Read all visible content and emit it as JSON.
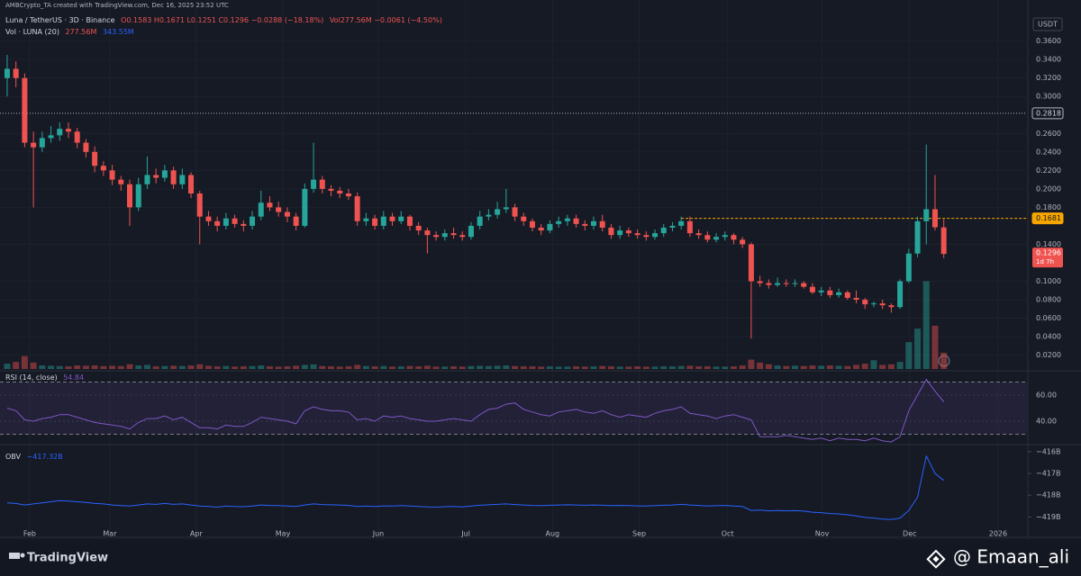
{
  "chart_data": {
    "type": "candlestick",
    "header": {
      "attribution": "AMBCrypto_TA created with TradingView.com, Dec 16, 2025 23:52 UTC",
      "symbol": "Luna / TetherUS · 3D · Binance",
      "ohlc": "O0.1583 H0.1671 L0.1251 C0.1296 −0.0288 (−18.18%)",
      "volume": "Vol277.56M −0.0061 (−4.50%)"
    },
    "volume_legend": {
      "name": "Vol · LUNA (20)",
      "value": "277.56M",
      "ma": "343.55M"
    },
    "currency": "USDT",
    "up_color": "#26a69a",
    "down_color": "#ef5350",
    "grid": true,
    "xlim": [
      -0.82,
      116.5
    ],
    "xticks": [
      {
        "value": 2.57,
        "label": "Feb"
      },
      {
        "value": 11.73,
        "label": "Mar"
      },
      {
        "value": 21.6,
        "label": "Apr"
      },
      {
        "value": 31.5,
        "label": "May"
      },
      {
        "value": 42.4,
        "label": "Jun"
      },
      {
        "value": 52.4,
        "label": "Jul"
      },
      {
        "value": 62.3,
        "label": "Aug"
      },
      {
        "value": 72.2,
        "label": "Sep"
      },
      {
        "value": 82.3,
        "label": "Oct"
      },
      {
        "value": 93.1,
        "label": "Nov"
      },
      {
        "value": 103.1,
        "label": "Dec"
      },
      {
        "value": 113.2,
        "label": "2026"
      }
    ],
    "ylim": [
      0.005,
      0.385
    ],
    "yticks": [
      {
        "value": 0.36,
        "label": "0.3600"
      },
      {
        "value": 0.34,
        "label": "0.3400"
      },
      {
        "value": 0.32,
        "label": "0.3200"
      },
      {
        "value": 0.3,
        "label": "0.3000"
      },
      {
        "value": 0.26,
        "label": "0.2600"
      },
      {
        "value": 0.24,
        "label": "0.2400"
      },
      {
        "value": 0.22,
        "label": "0.2200"
      },
      {
        "value": 0.2,
        "label": "0.2000"
      },
      {
        "value": 0.18,
        "label": "0.1800"
      },
      {
        "value": 0.14,
        "label": "0.1400"
      },
      {
        "value": 0.1,
        "label": "0.1000"
      },
      {
        "value": 0.08,
        "label": "0.0800"
      },
      {
        "value": 0.06,
        "label": "0.0600"
      },
      {
        "value": 0.04,
        "label": "0.0400"
      },
      {
        "value": 0.02,
        "label": "0.0200"
      }
    ],
    "price_lines": [
      {
        "value": 0.2818,
        "color": "#b2b5be"
      },
      {
        "value": 0.1681,
        "color": "#f7a600"
      }
    ],
    "countdown": "1d 7h",
    "candles": [
      [
        0.32,
        0.345,
        0.3,
        0.33
      ],
      [
        0.33,
        0.338,
        0.31,
        0.32
      ],
      [
        0.32,
        0.325,
        0.245,
        0.25
      ],
      [
        0.25,
        0.262,
        0.18,
        0.245
      ],
      [
        0.245,
        0.262,
        0.24,
        0.255
      ],
      [
        0.255,
        0.268,
        0.25,
        0.258
      ],
      [
        0.258,
        0.272,
        0.252,
        0.265
      ],
      [
        0.265,
        0.272,
        0.255,
        0.262
      ],
      [
        0.262,
        0.266,
        0.244,
        0.25
      ],
      [
        0.25,
        0.254,
        0.234,
        0.24
      ],
      [
        0.24,
        0.246,
        0.218,
        0.225
      ],
      [
        0.225,
        0.23,
        0.214,
        0.22
      ],
      [
        0.22,
        0.226,
        0.204,
        0.21
      ],
      [
        0.21,
        0.214,
        0.198,
        0.205
      ],
      [
        0.205,
        0.21,
        0.16,
        0.18
      ],
      [
        0.18,
        0.212,
        0.176,
        0.205
      ],
      [
        0.205,
        0.235,
        0.2,
        0.215
      ],
      [
        0.215,
        0.222,
        0.206,
        0.212
      ],
      [
        0.212,
        0.226,
        0.208,
        0.22
      ],
      [
        0.22,
        0.224,
        0.2,
        0.205
      ],
      [
        0.205,
        0.222,
        0.2,
        0.215
      ],
      [
        0.215,
        0.218,
        0.19,
        0.195
      ],
      [
        0.195,
        0.198,
        0.14,
        0.17
      ],
      [
        0.17,
        0.176,
        0.16,
        0.165
      ],
      [
        0.165,
        0.17,
        0.154,
        0.16
      ],
      [
        0.16,
        0.174,
        0.156,
        0.168
      ],
      [
        0.168,
        0.172,
        0.158,
        0.162
      ],
      [
        0.162,
        0.166,
        0.154,
        0.16
      ],
      [
        0.16,
        0.176,
        0.156,
        0.17
      ],
      [
        0.17,
        0.198,
        0.166,
        0.185
      ],
      [
        0.185,
        0.192,
        0.176,
        0.18
      ],
      [
        0.18,
        0.186,
        0.17,
        0.175
      ],
      [
        0.175,
        0.18,
        0.164,
        0.17
      ],
      [
        0.17,
        0.174,
        0.155,
        0.16
      ],
      [
        0.16,
        0.206,
        0.158,
        0.2
      ],
      [
        0.2,
        0.25,
        0.196,
        0.21
      ],
      [
        0.21,
        0.214,
        0.195,
        0.2
      ],
      [
        0.2,
        0.204,
        0.192,
        0.198
      ],
      [
        0.198,
        0.202,
        0.19,
        0.195
      ],
      [
        0.195,
        0.2,
        0.188,
        0.192
      ],
      [
        0.192,
        0.196,
        0.16,
        0.165
      ],
      [
        0.165,
        0.174,
        0.16,
        0.168
      ],
      [
        0.168,
        0.172,
        0.156,
        0.16
      ],
      [
        0.16,
        0.176,
        0.156,
        0.17
      ],
      [
        0.17,
        0.174,
        0.16,
        0.165
      ],
      [
        0.165,
        0.176,
        0.162,
        0.17
      ],
      [
        0.17,
        0.172,
        0.155,
        0.16
      ],
      [
        0.16,
        0.164,
        0.15,
        0.155
      ],
      [
        0.155,
        0.158,
        0.13,
        0.15
      ],
      [
        0.15,
        0.154,
        0.144,
        0.148
      ],
      [
        0.148,
        0.156,
        0.144,
        0.152
      ],
      [
        0.152,
        0.158,
        0.146,
        0.15
      ],
      [
        0.15,
        0.154,
        0.144,
        0.148
      ],
      [
        0.148,
        0.164,
        0.145,
        0.16
      ],
      [
        0.16,
        0.176,
        0.156,
        0.17
      ],
      [
        0.17,
        0.178,
        0.166,
        0.172
      ],
      [
        0.172,
        0.186,
        0.168,
        0.178
      ],
      [
        0.178,
        0.2,
        0.174,
        0.18
      ],
      [
        0.18,
        0.184,
        0.165,
        0.17
      ],
      [
        0.17,
        0.174,
        0.16,
        0.165
      ],
      [
        0.165,
        0.168,
        0.154,
        0.158
      ],
      [
        0.158,
        0.162,
        0.15,
        0.155
      ],
      [
        0.155,
        0.166,
        0.152,
        0.162
      ],
      [
        0.162,
        0.17,
        0.158,
        0.165
      ],
      [
        0.165,
        0.172,
        0.16,
        0.168
      ],
      [
        0.168,
        0.172,
        0.158,
        0.162
      ],
      [
        0.162,
        0.166,
        0.155,
        0.16
      ],
      [
        0.16,
        0.17,
        0.156,
        0.165
      ],
      [
        0.165,
        0.172,
        0.154,
        0.158
      ],
      [
        0.158,
        0.162,
        0.146,
        0.15
      ],
      [
        0.15,
        0.16,
        0.146,
        0.155
      ],
      [
        0.155,
        0.158,
        0.148,
        0.152
      ],
      [
        0.152,
        0.156,
        0.146,
        0.15
      ],
      [
        0.15,
        0.154,
        0.144,
        0.148
      ],
      [
        0.148,
        0.156,
        0.145,
        0.152
      ],
      [
        0.152,
        0.162,
        0.148,
        0.158
      ],
      [
        0.158,
        0.164,
        0.154,
        0.16
      ],
      [
        0.16,
        0.17,
        0.156,
        0.165
      ],
      [
        0.165,
        0.17,
        0.148,
        0.152
      ],
      [
        0.152,
        0.156,
        0.146,
        0.15
      ],
      [
        0.15,
        0.154,
        0.142,
        0.145
      ],
      [
        0.145,
        0.152,
        0.142,
        0.148
      ],
      [
        0.148,
        0.154,
        0.144,
        0.15
      ],
      [
        0.15,
        0.152,
        0.14,
        0.145
      ],
      [
        0.145,
        0.148,
        0.136,
        0.14
      ],
      [
        0.14,
        0.142,
        0.038,
        0.1
      ],
      [
        0.1,
        0.106,
        0.094,
        0.098
      ],
      [
        0.098,
        0.102,
        0.092,
        0.096
      ],
      [
        0.096,
        0.104,
        0.094,
        0.098
      ],
      [
        0.098,
        0.102,
        0.094,
        0.097
      ],
      [
        0.097,
        0.102,
        0.094,
        0.098
      ],
      [
        0.098,
        0.1,
        0.092,
        0.094
      ],
      [
        0.094,
        0.098,
        0.086,
        0.088
      ],
      [
        0.088,
        0.094,
        0.084,
        0.09
      ],
      [
        0.09,
        0.094,
        0.082,
        0.085
      ],
      [
        0.085,
        0.092,
        0.082,
        0.088
      ],
      [
        0.088,
        0.09,
        0.08,
        0.082
      ],
      [
        0.082,
        0.09,
        0.076,
        0.08
      ],
      [
        0.08,
        0.082,
        0.07,
        0.075
      ],
      [
        0.075,
        0.078,
        0.072,
        0.076
      ],
      [
        0.076,
        0.08,
        0.07,
        0.074
      ],
      [
        0.074,
        0.076,
        0.066,
        0.072
      ],
      [
        0.072,
        0.102,
        0.07,
        0.1
      ],
      [
        0.1,
        0.135,
        0.098,
        0.13
      ],
      [
        0.13,
        0.17,
        0.126,
        0.165
      ],
      [
        0.165,
        0.248,
        0.14,
        0.178
      ],
      [
        0.178,
        0.215,
        0.155,
        0.1584
      ],
      [
        0.1583,
        0.1671,
        0.1251,
        0.1296
      ]
    ],
    "volume_lim": [
      0,
      6000
    ],
    "volumes": [
      90,
      120,
      220,
      110,
      60,
      55,
      50,
      45,
      60,
      55,
      60,
      50,
      55,
      50,
      80,
      60,
      70,
      45,
      50,
      55,
      50,
      60,
      80,
      55,
      45,
      50,
      40,
      45,
      50,
      60,
      45,
      40,
      45,
      55,
      70,
      80,
      50,
      45,
      40,
      45,
      70,
      50,
      45,
      50,
      40,
      45,
      50,
      45,
      55,
      40,
      40,
      45,
      40,
      50,
      55,
      50,
      55,
      60,
      50,
      45,
      45,
      40,
      45,
      40,
      40,
      45,
      40,
      45,
      50,
      45,
      40,
      40,
      45,
      40,
      40,
      45,
      45,
      50,
      55,
      45,
      45,
      40,
      40,
      45,
      60,
      160,
      110,
      80,
      60,
      50,
      55,
      50,
      60,
      55,
      60,
      55,
      50,
      70,
      90,
      150,
      70,
      80,
      120,
      460,
      690,
      1500,
      740,
      277.56
    ],
    "rsi": {
      "name": "RSI (14, close)",
      "color": "#7e57c2",
      "ylim": [
        23.4,
        74.5
      ],
      "yticks": [
        {
          "value": 60,
          "label": "60.00"
        },
        {
          "value": 40,
          "label": "40.00"
        }
      ],
      "bands": [
        30,
        70
      ],
      "values": [
        50,
        48,
        41,
        40,
        42,
        43,
        45,
        45,
        43,
        41,
        39,
        38,
        37,
        36,
        34,
        39,
        42,
        42,
        44,
        41,
        43,
        39,
        35,
        35,
        34,
        37,
        36,
        36,
        39,
        43,
        42,
        41,
        40,
        38,
        48,
        51,
        49,
        48,
        48,
        47,
        41,
        42,
        40,
        44,
        43,
        44,
        42,
        41,
        40,
        40,
        41,
        42,
        41,
        40,
        45,
        49,
        50,
        53,
        54,
        49,
        47,
        45,
        44,
        47,
        48,
        49,
        47,
        46,
        48,
        45,
        43,
        45,
        44,
        43,
        46,
        48,
        49,
        51,
        46,
        45,
        44,
        42,
        44,
        45,
        43,
        41,
        28,
        28,
        28,
        29,
        28,
        27,
        26,
        27,
        25,
        27,
        26,
        26,
        25,
        27,
        25,
        24,
        28,
        48,
        60,
        72,
        63,
        54.84
      ]
    },
    "obv": {
      "name": "OBV",
      "value_label": "−417.32B",
      "color": "#2962ff",
      "ylim": [
        -419.85,
        -415.76
      ],
      "yticks": [
        {
          "value": -416,
          "label": "−416B"
        },
        {
          "value": -417,
          "label": "−417B"
        },
        {
          "value": -418,
          "label": "−418B"
        },
        {
          "value": -419,
          "label": "−419B"
        }
      ],
      "values": [
        -418.35,
        -418.38,
        -418.45,
        -418.4,
        -418.35,
        -418.3,
        -418.25,
        -418.27,
        -418.3,
        -418.33,
        -418.38,
        -418.4,
        -418.45,
        -418.48,
        -418.5,
        -418.45,
        -418.4,
        -418.42,
        -418.38,
        -418.42,
        -418.4,
        -418.45,
        -418.5,
        -418.52,
        -418.55,
        -418.5,
        -418.52,
        -418.53,
        -418.5,
        -418.45,
        -418.47,
        -418.48,
        -418.5,
        -418.52,
        -418.45,
        -418.4,
        -418.43,
        -418.44,
        -418.45,
        -418.47,
        -418.52,
        -418.5,
        -418.52,
        -418.49,
        -418.5,
        -418.48,
        -418.5,
        -418.52,
        -418.54,
        -418.55,
        -418.53,
        -418.52,
        -418.54,
        -418.5,
        -418.46,
        -418.44,
        -418.42,
        -418.4,
        -418.43,
        -418.45,
        -418.47,
        -418.48,
        -418.46,
        -418.45,
        -418.44,
        -418.45,
        -418.46,
        -418.45,
        -418.46,
        -418.48,
        -418.47,
        -418.48,
        -418.49,
        -418.5,
        -418.48,
        -418.46,
        -418.45,
        -418.42,
        -418.45,
        -418.47,
        -418.5,
        -418.48,
        -418.47,
        -418.5,
        -418.52,
        -418.7,
        -418.68,
        -418.72,
        -418.7,
        -418.72,
        -418.71,
        -418.73,
        -418.78,
        -418.8,
        -418.84,
        -418.86,
        -418.9,
        -418.95,
        -419.02,
        -419.05,
        -419.1,
        -419.12,
        -419.05,
        -418.7,
        -418.1,
        -416.2,
        -417.0,
        -417.32
      ]
    },
    "branding": {
      "logo": "TradingView",
      "watermark": "@ Emaan_ali"
    }
  }
}
